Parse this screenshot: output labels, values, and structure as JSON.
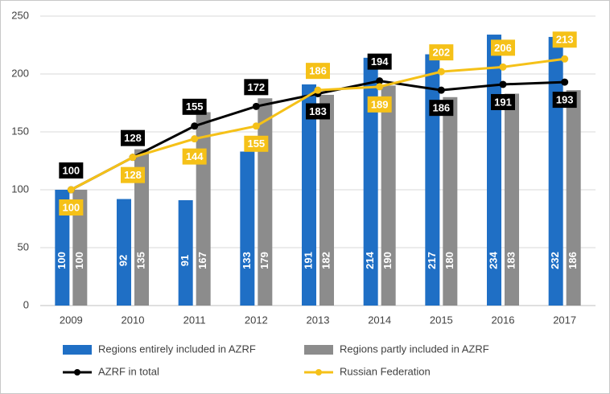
{
  "chart_data": {
    "type": "combo",
    "categories": [
      "2009",
      "2010",
      "2011",
      "2012",
      "2013",
      "2014",
      "2015",
      "2016",
      "2017"
    ],
    "series": [
      {
        "name": "Regions entirely included in AZRF",
        "type": "bar",
        "color": "#1f6fc5",
        "values": [
          100,
          92,
          91,
          133,
          191,
          214,
          217,
          234,
          232
        ]
      },
      {
        "name": "Regions partly included in AZRF",
        "type": "bar",
        "color": "#8c8c8c",
        "values": [
          100,
          135,
          167,
          179,
          182,
          190,
          180,
          183,
          186
        ]
      },
      {
        "name": "AZRF in total",
        "type": "line",
        "color": "#000000",
        "values": [
          100,
          128,
          155,
          172,
          183,
          194,
          186,
          191,
          193
        ]
      },
      {
        "name": "Russian Federation",
        "type": "line",
        "color": "#f5c118",
        "values": [
          100,
          128,
          144,
          155,
          186,
          189,
          202,
          206,
          213
        ]
      }
    ],
    "ylim": [
      0,
      250
    ],
    "yticks": [
      0,
      50,
      100,
      150,
      200,
      250
    ],
    "grid": true
  }
}
